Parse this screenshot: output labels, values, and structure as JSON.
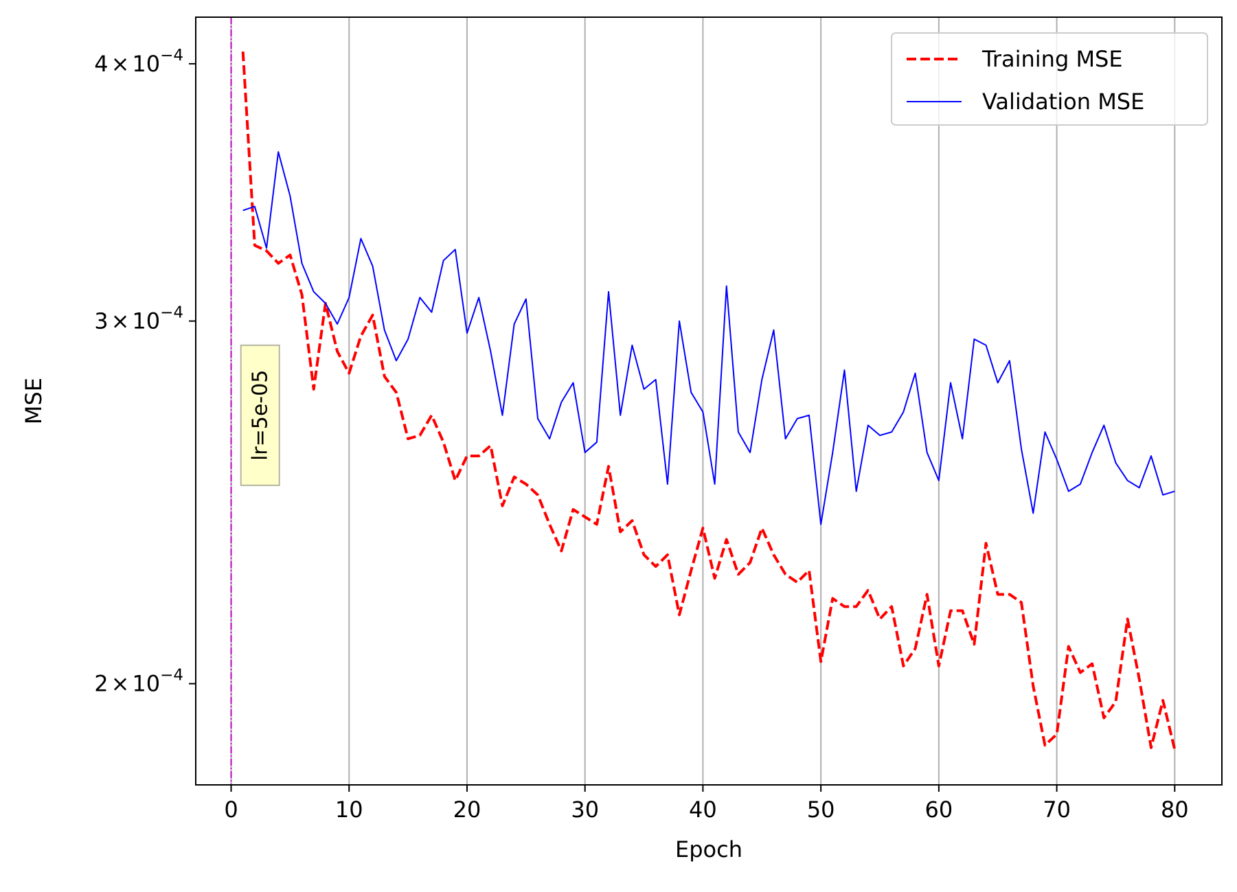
{
  "chart_data": {
    "type": "line",
    "title": "",
    "xlabel": "Epoch",
    "ylabel": "MSE",
    "yscale": "log",
    "xlim": [
      -3,
      84
    ],
    "ylim": [
      0.0001786,
      0.0004214
    ],
    "grid": {
      "x": true,
      "y": false
    },
    "legend": {
      "placement": "top-right"
    },
    "x_ticks": [
      {
        "value": 0,
        "label": "0"
      },
      {
        "value": 10,
        "label": "10"
      },
      {
        "value": 20,
        "label": "20"
      },
      {
        "value": 30,
        "label": "30"
      },
      {
        "value": 40,
        "label": "40"
      },
      {
        "value": 50,
        "label": "50"
      },
      {
        "value": 60,
        "label": "60"
      },
      {
        "value": 70,
        "label": "70"
      },
      {
        "value": 80,
        "label": "80"
      }
    ],
    "y_ticks": [
      {
        "value": 0.0002,
        "mantissa": "2",
        "times": "×",
        "base": "10",
        "exponent": "−4"
      },
      {
        "value": 0.0003,
        "mantissa": "3",
        "times": "×",
        "base": "10",
        "exponent": "−4"
      },
      {
        "value": 0.0004,
        "mantissa": "4",
        "times": "×",
        "base": "10",
        "exponent": "−4"
      }
    ],
    "x": [
      1,
      2,
      3,
      4,
      5,
      6,
      7,
      8,
      9,
      10,
      11,
      12,
      13,
      14,
      15,
      16,
      17,
      18,
      19,
      20,
      21,
      22,
      23,
      24,
      25,
      26,
      27,
      28,
      29,
      30,
      31,
      32,
      33,
      34,
      35,
      36,
      37,
      38,
      39,
      40,
      41,
      42,
      43,
      44,
      45,
      46,
      47,
      48,
      49,
      50,
      51,
      52,
      53,
      54,
      55,
      56,
      57,
      58,
      59,
      60,
      61,
      62,
      63,
      64,
      65,
      66,
      67,
      68,
      69,
      70,
      71,
      72,
      73,
      74,
      75,
      76,
      77,
      78,
      79,
      80
    ],
    "series": [
      {
        "name": "Training MSE",
        "color": "#ff0000",
        "style": "dashed",
        "values": [
          0.0004055,
          0.0003265,
          0.0003245,
          0.00032,
          0.000323,
          0.000309,
          0.000278,
          0.000306,
          0.00029,
          0.000283,
          0.000295,
          0.000302,
          0.000282,
          0.000277,
          0.000263,
          0.000264,
          0.00027,
          0.000262,
          0.000251,
          0.000258,
          0.000258,
          0.000261,
          0.000244,
          0.000252,
          0.00025,
          0.000247,
          0.000239,
          0.000232,
          0.000243,
          0.000241,
          0.000239,
          0.000255,
          0.000237,
          0.00024,
          0.000231,
          0.000228,
          0.000231,
          0.000216,
          0.000227,
          0.000238,
          0.000225,
          0.000235,
          0.000226,
          0.000229,
          0.000238,
          0.000231,
          0.000226,
          0.000224,
          0.000227,
          0.000205,
          0.00022,
          0.000218,
          0.000218,
          0.000222,
          0.000215,
          0.000218,
          0.000204,
          0.000208,
          0.000221,
          0.000204,
          0.000217,
          0.000217,
          0.000209,
          0.000234,
          0.000221,
          0.000221,
          0.000219,
          0.0001995,
          0.0001867,
          0.000189,
          0.0002085,
          0.0002025,
          0.0002045,
          0.0001925,
          0.000196,
          0.000215,
          0.000201,
          0.0001862,
          0.0001963,
          0.0001858
        ]
      },
      {
        "name": "Validation MSE",
        "color": "#0000ff",
        "style": "solid",
        "values": [
          0.0003395,
          0.000341,
          0.0003255,
          0.0003625,
          0.000345,
          0.00032,
          0.00031,
          0.000306,
          0.000299,
          0.000308,
          0.000329,
          0.000319,
          0.000297,
          0.000287,
          0.000294,
          0.000308,
          0.000303,
          0.000321,
          0.000325,
          0.000296,
          0.000308,
          0.00029,
          0.00027,
          0.000299,
          0.0003075,
          0.000269,
          0.000263,
          0.000274,
          0.00028,
          0.000259,
          0.000262,
          0.00031,
          0.00027,
          0.000292,
          0.000278,
          0.000281,
          0.00025,
          0.0003,
          0.000277,
          0.000271,
          0.00025,
          0.000312,
          0.000265,
          0.000259,
          0.000281,
          0.000297,
          0.000263,
          0.000269,
          0.00027,
          0.000239,
          0.000259,
          0.000284,
          0.000248,
          0.000267,
          0.000264,
          0.000265,
          0.000271,
          0.000283,
          0.000259,
          0.000251,
          0.00028,
          0.000263,
          0.000294,
          0.000292,
          0.00028,
          0.000287,
          0.00026,
          0.000242,
          0.000265,
          0.000257,
          0.000248,
          0.00025,
          0.000259,
          0.000267,
          0.000256,
          0.000251,
          0.000249,
          0.000258,
          0.000247,
          0.000248
        ]
      }
    ],
    "vline": {
      "x": 0,
      "color": "#bf00bf"
    },
    "annotation": {
      "text": "lr=5e-05",
      "x": 2.4,
      "y": 0.00027,
      "rotation": 90
    }
  }
}
